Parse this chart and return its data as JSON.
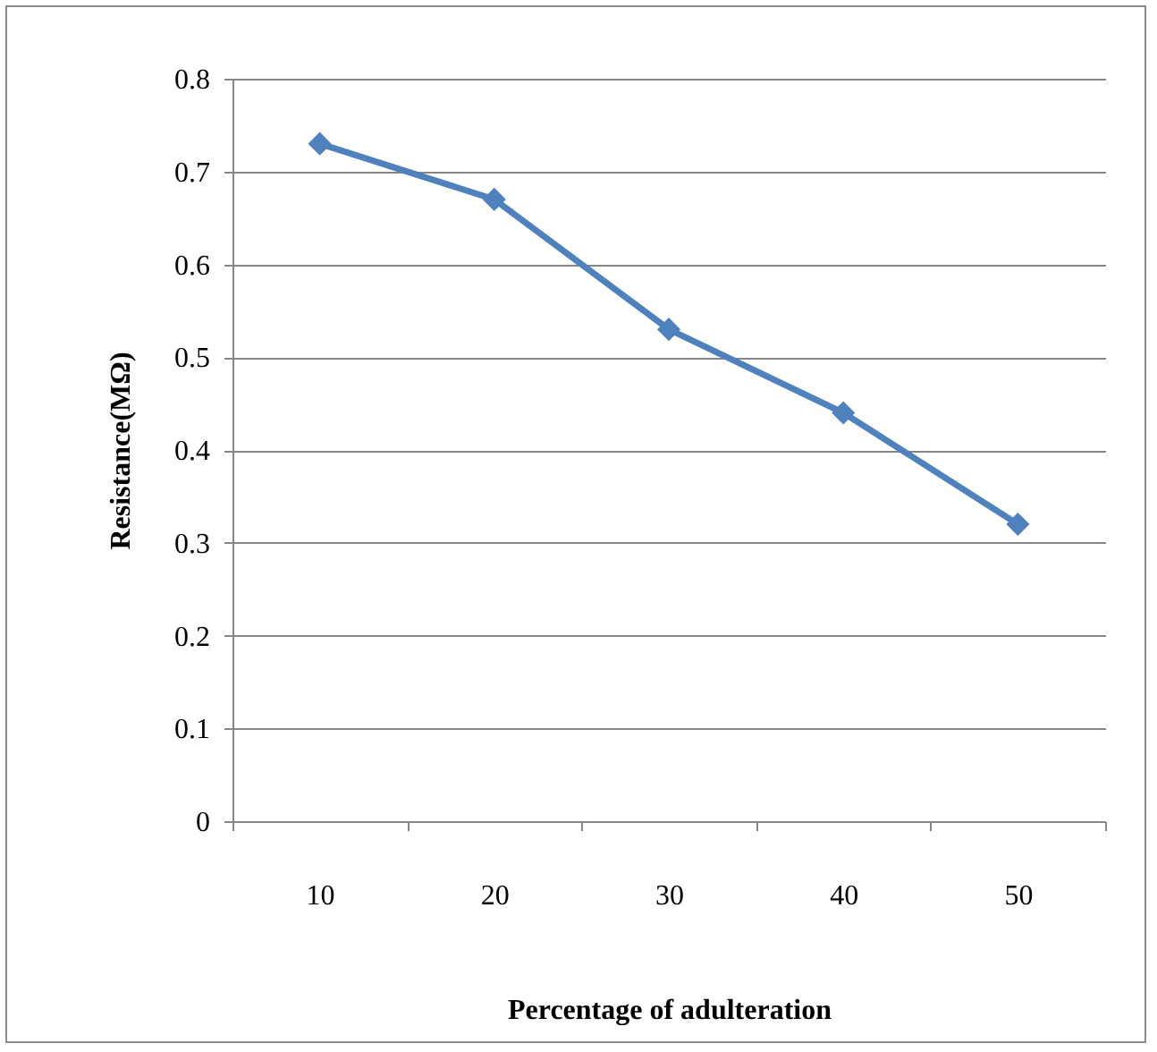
{
  "chart_data": {
    "type": "line",
    "xlabel": "Percentage of adulteration",
    "ylabel": "Resistance(MΩ)",
    "categories": [
      "10",
      "20",
      "30",
      "40",
      "50"
    ],
    "series": [
      {
        "color": "#4f81bd",
        "values": [
          0.73,
          0.67,
          0.53,
          0.44,
          0.32
        ]
      }
    ],
    "ylim": [
      0,
      0.8
    ],
    "yticks": [
      0,
      0.1,
      0.2,
      0.3,
      0.4,
      0.5,
      0.6,
      0.7,
      0.8
    ],
    "grid": "y",
    "marker": "diamond",
    "line_style": "solid",
    "legend": false
  }
}
